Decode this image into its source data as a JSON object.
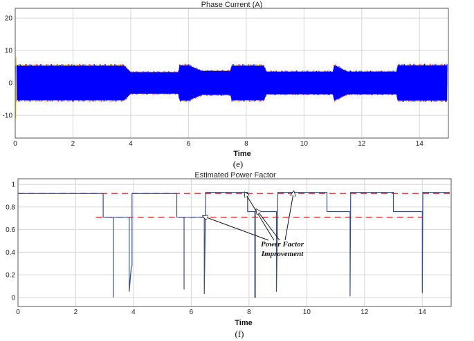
{
  "chart_data": [
    {
      "type": "line",
      "title": "Phase Current (A)",
      "xlabel": "Time",
      "ylabel": "",
      "caption": "(e)",
      "xlim": [
        0,
        15
      ],
      "ylim": [
        -17,
        23
      ],
      "xticks": [
        "0",
        "2",
        "4",
        "6",
        "8",
        "10",
        "12",
        "14"
      ],
      "yticks": [
        "20",
        "10",
        "0",
        "-10"
      ],
      "grid": true,
      "series_colors": [
        "#0000ff",
        "#d4252b",
        "#e8c21a"
      ],
      "envelope": {
        "t": [
          0,
          3.7,
          3.75,
          4.0,
          5.65,
          5.7,
          6.0,
          6.45,
          7.45,
          7.5,
          8.1,
          8.6,
          8.7,
          9.1,
          11.0,
          11.05,
          11.5,
          13.2,
          13.25,
          13.6,
          14.95
        ],
        "amplitude": [
          5.8,
          5.8,
          5.9,
          3.6,
          3.6,
          5.9,
          5.9,
          4.0,
          4.0,
          5.8,
          5.8,
          5.8,
          3.8,
          3.8,
          3.8,
          5.9,
          3.8,
          3.8,
          5.9,
          5.9,
          5.9
        ]
      }
    },
    {
      "type": "line",
      "title": "Estimated Power Factor",
      "xlabel": "Time",
      "ylabel": "",
      "caption": "(f)",
      "xlim": [
        0,
        15
      ],
      "ylim": [
        -0.08,
        1.05
      ],
      "xticks": [
        "0",
        "2",
        "4",
        "6",
        "8",
        "10",
        "12",
        "14"
      ],
      "yticks": [
        "1",
        "0.8",
        "0.6",
        "0.4",
        "0.2",
        "0"
      ],
      "grid": true,
      "series": [
        {
          "color": "#3b4f7a",
          "x": [
            0,
            2.95,
            2.95,
            3.3,
            3.3,
            3.3,
            3.85,
            3.85,
            3.92,
            3.95,
            3.95,
            5.5,
            5.5,
            5.75,
            5.75,
            5.75,
            6.45,
            6.45,
            6.5,
            6.5,
            7.95,
            7.95,
            8.2,
            8.2,
            8.22,
            8.22,
            8.95,
            8.95,
            9.0,
            9.0,
            10.7,
            10.7,
            11.5,
            11.5,
            11.52,
            11.52,
            13.0,
            13.0,
            14.0,
            14.0,
            14.02,
            14.02,
            14.95
          ],
          "y": [
            0.92,
            0.92,
            0.71,
            0.71,
            0.0,
            0.71,
            0.71,
            0.05,
            0.26,
            0.28,
            0.92,
            0.92,
            0.71,
            0.71,
            0.07,
            0.71,
            0.71,
            0.03,
            0.9,
            0.93,
            0.93,
            0.76,
            0.76,
            0.0,
            0.0,
            0.76,
            0.76,
            0.05,
            0.93,
            0.93,
            0.93,
            0.76,
            0.76,
            0.01,
            0.93,
            0.93,
            0.93,
            0.76,
            0.76,
            0.04,
            0.93,
            0.93,
            0.93
          ]
        }
      ],
      "reference_lines": [
        {
          "y": 0.92,
          "x": [
            0.0,
            14.95
          ],
          "color": "#d43030",
          "style": "dashed"
        },
        {
          "y": 0.71,
          "x": [
            2.7,
            14.0
          ],
          "color": "#d43030",
          "style": "dashed"
        }
      ],
      "annotation": {
        "text_line1": "Power Factor",
        "text_line2": "Improvement"
      }
    }
  ]
}
